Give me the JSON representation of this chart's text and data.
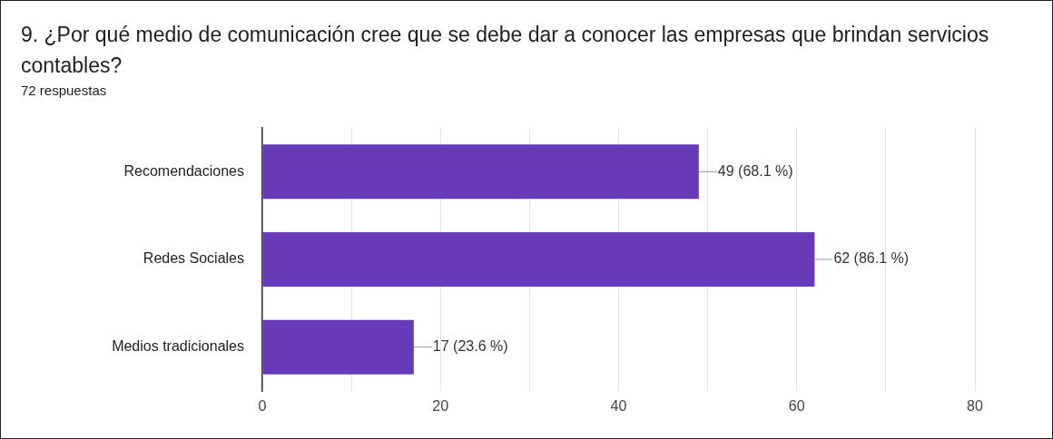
{
  "chart_data": {
    "type": "bar",
    "orientation": "horizontal",
    "title": "9. ¿Por qué medio de comunicación cree que se debe dar a conocer las empresas que brindan servicios contables?",
    "subtitle": "72 respuestas",
    "categories": [
      "Recomendaciones",
      "Redes Sociales",
      "Medios tradicionales"
    ],
    "values": [
      49,
      62,
      17
    ],
    "value_labels": [
      "49 (68.1 %)",
      "62 (86.1 %)",
      "17 (23.6 %)"
    ],
    "color": "#673ab7",
    "xlim": [
      0,
      80
    ],
    "xticks": [
      0,
      {
        "value": 10,
        "label": null
      },
      20,
      {
        "value": 30,
        "label": null
      },
      40,
      {
        "value": 50,
        "label": null
      },
      60,
      {
        "value": 70,
        "label": null
      },
      80
    ],
    "grid": "x"
  }
}
